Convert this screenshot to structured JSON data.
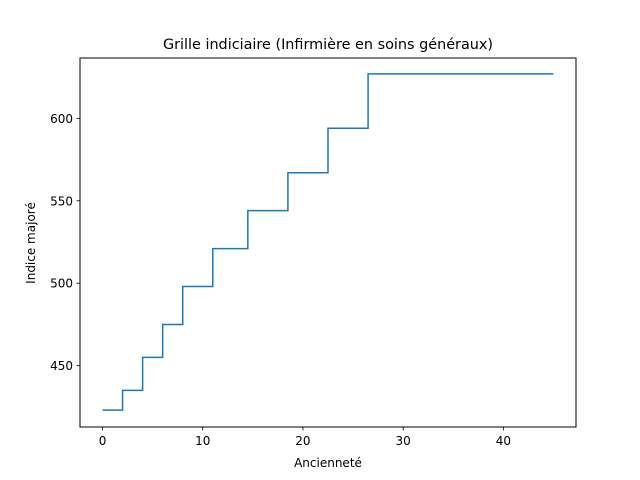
{
  "chart_data": {
    "type": "line",
    "drawstyle": "steps-post",
    "title": "Grille indiciaire (Infirmière en soins généraux)",
    "xlabel": "Ancienneté",
    "ylabel": "Indice majoré",
    "xlim": [
      -2.25,
      47.25
    ],
    "ylim": [
      412.8,
      636.6
    ],
    "xticks": [
      0,
      10,
      20,
      30,
      40
    ],
    "yticks": [
      450,
      500,
      550,
      600
    ],
    "grid": false,
    "line_color": "#1f77b4",
    "series": [
      {
        "x": [
          0,
          2,
          4,
          6,
          8,
          11,
          14.5,
          18.5,
          22.5,
          26.5,
          45
        ],
        "y": [
          423,
          435,
          455,
          475,
          498,
          521,
          544,
          567,
          594,
          627,
          627
        ]
      }
    ]
  }
}
